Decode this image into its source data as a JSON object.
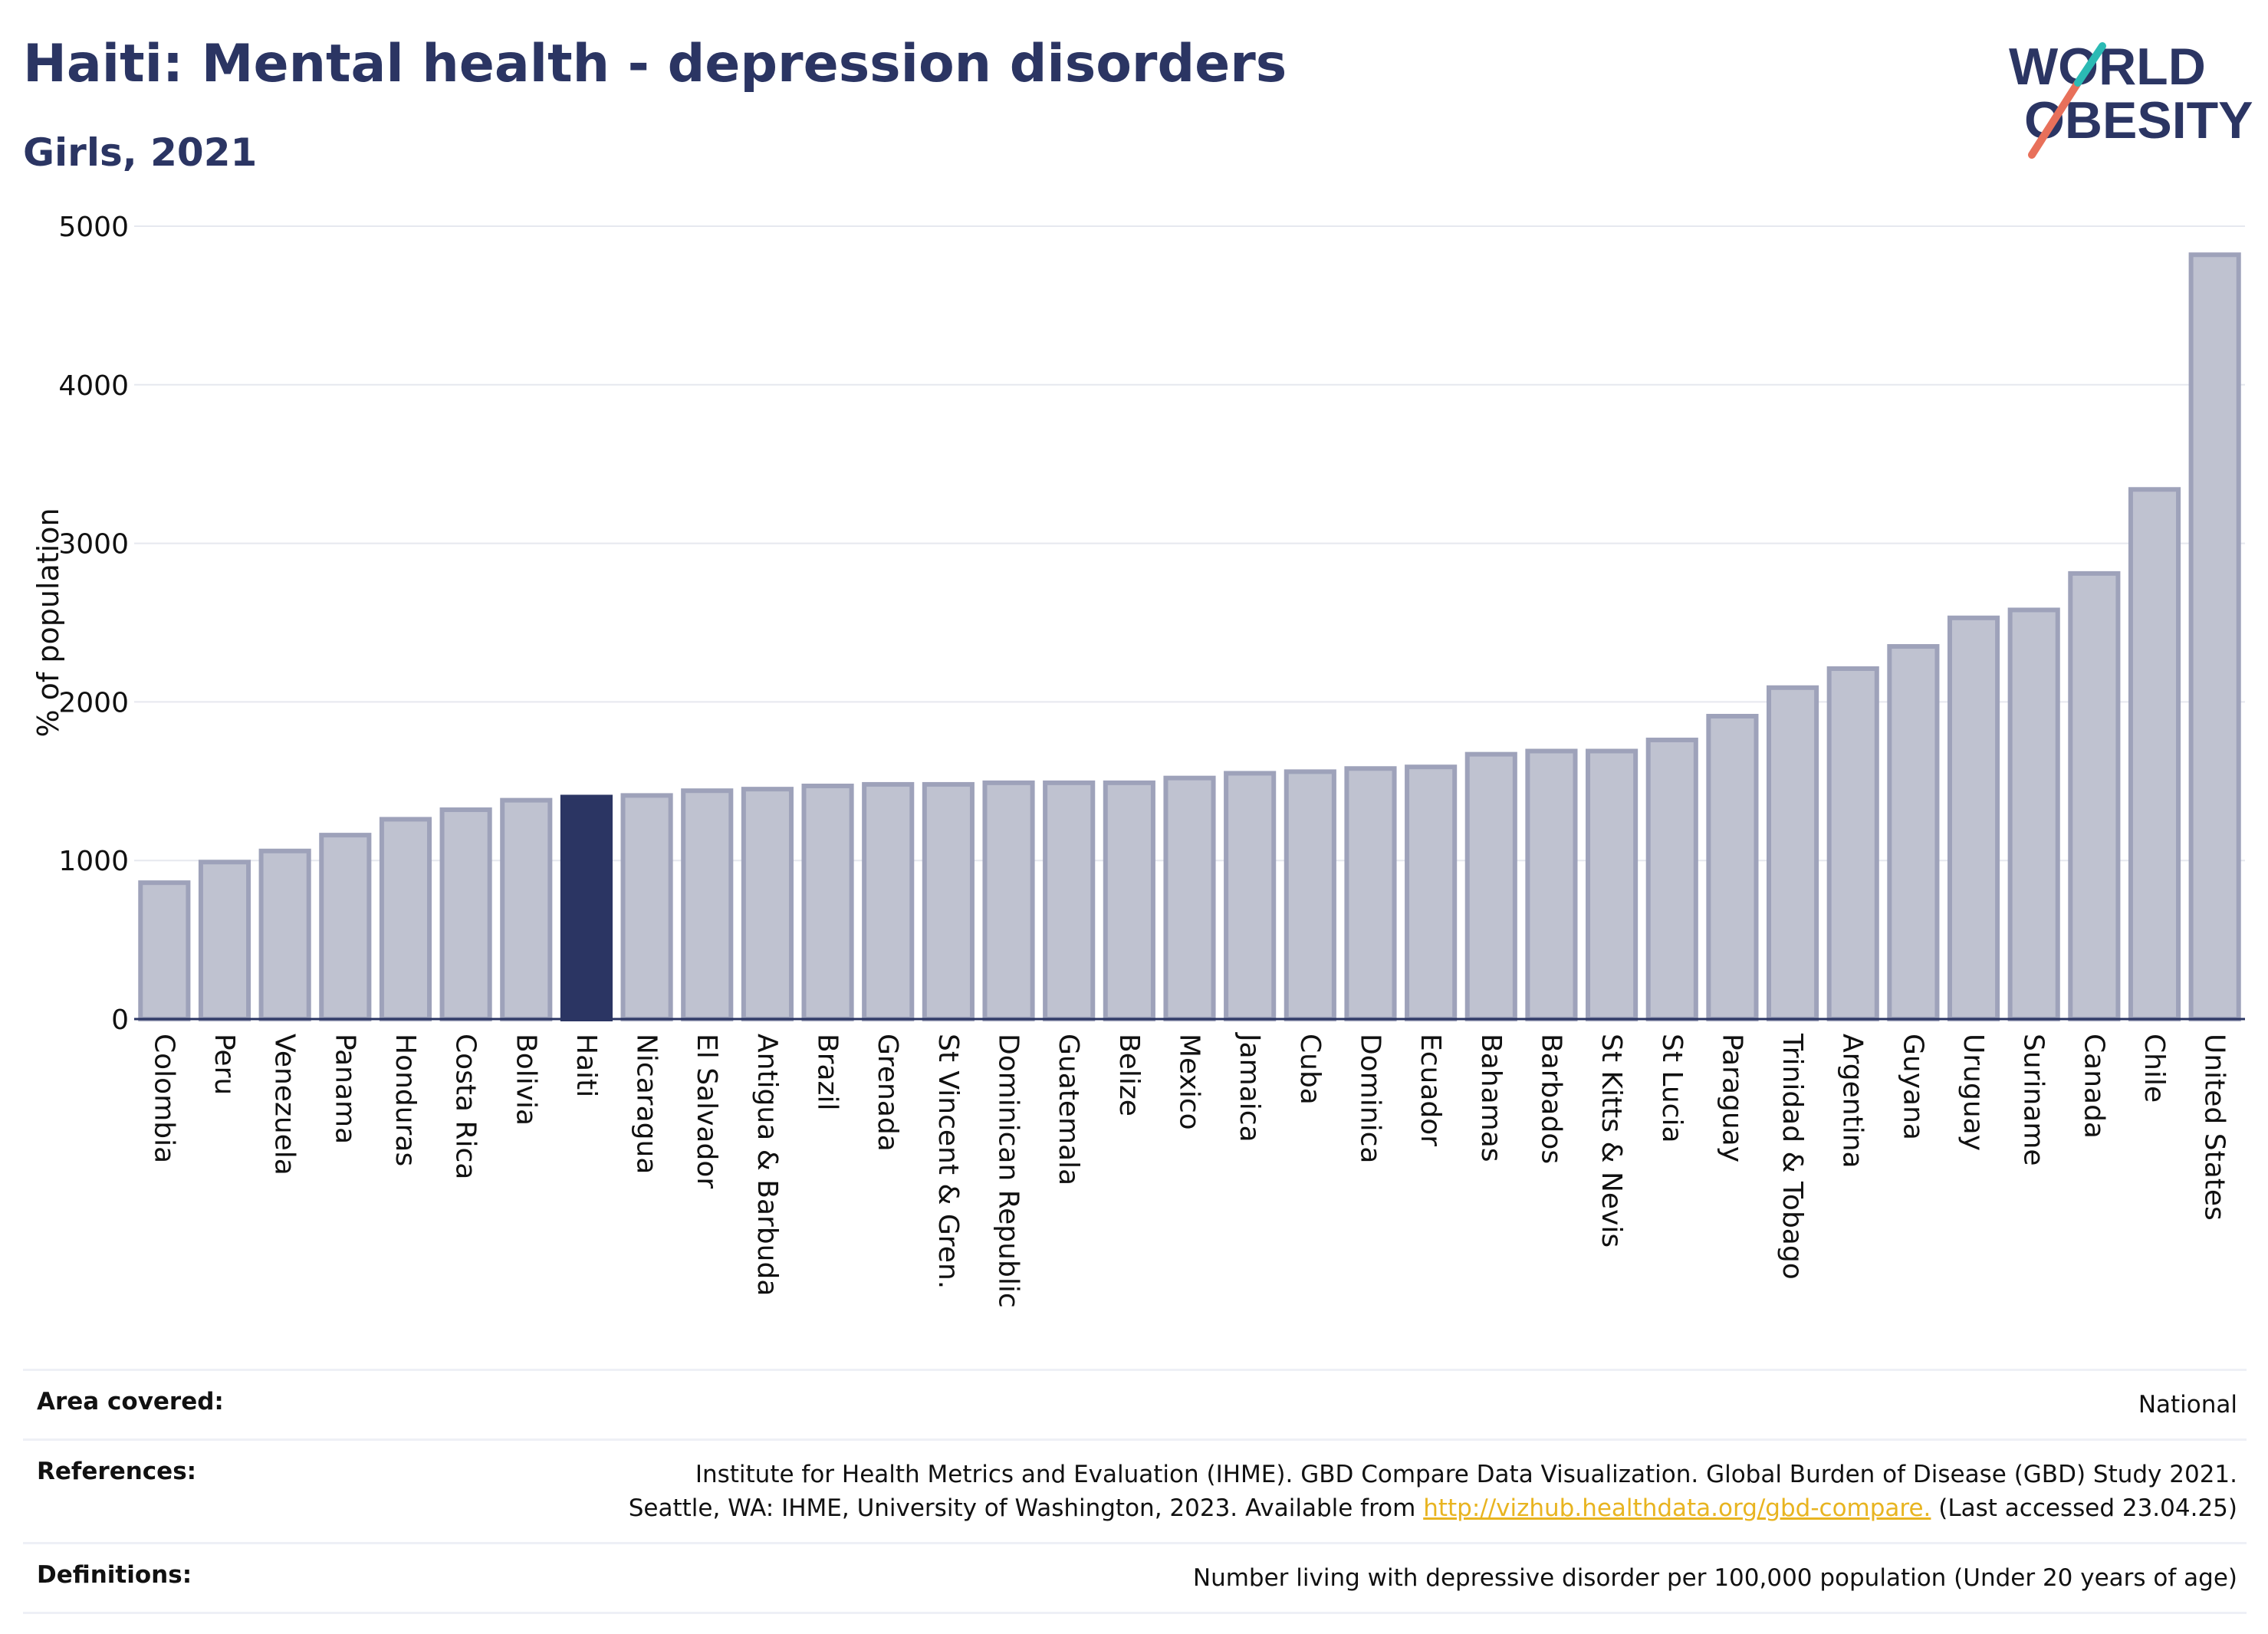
{
  "header": {
    "title": "Haiti: Mental health - depression disorders",
    "subtitle": "Girls, 2021"
  },
  "logo": {
    "line1": "WORLD",
    "line2": "OBESITY",
    "colors": [
      "#2b3563",
      "#e8705a",
      "#2bbab4"
    ]
  },
  "chart_data": {
    "type": "bar",
    "ylabel": "% of population",
    "ylim": [
      0,
      5000
    ],
    "yticks": [
      0,
      1000,
      2000,
      3000,
      4000,
      5000
    ],
    "grid": true,
    "highlight": "Haiti",
    "colors": {
      "bar": "#bfc2d0",
      "bar_border": "#9ea2ba",
      "highlight": "#2b3563",
      "grid": "#e6e8ef",
      "axis": "#2b3563"
    },
    "categories": [
      "Colombia",
      "Peru",
      "Venezuela",
      "Panama",
      "Honduras",
      "Costa Rica",
      "Bolivia",
      "Haiti",
      "Nicaragua",
      "El Salvador",
      "Antigua & Barbuda",
      "Brazil",
      "Grenada",
      "St Vincent & Gren.",
      "Dominican Republic",
      "Guatemala",
      "Belize",
      "Mexico",
      "Jamaica",
      "Cuba",
      "Dominica",
      "Ecuador",
      "Bahamas",
      "Barbados",
      "St Kitts & Nevis",
      "St Lucia",
      "Paraguay",
      "Trinidad & Tobago",
      "Argentina",
      "Guyana",
      "Uruguay",
      "Suriname",
      "Canada",
      "Chile",
      "United States"
    ],
    "values": [
      860,
      990,
      1060,
      1160,
      1260,
      1320,
      1380,
      1400,
      1410,
      1440,
      1450,
      1470,
      1480,
      1480,
      1490,
      1490,
      1490,
      1520,
      1550,
      1560,
      1580,
      1590,
      1670,
      1690,
      1690,
      1760,
      1910,
      2090,
      2210,
      2350,
      2530,
      2580,
      2810,
      3340,
      4820
    ]
  },
  "footer": {
    "area_label": "Area covered:",
    "area_value": "National",
    "references_label": "References:",
    "references_line1": "Institute for Health Metrics and Evaluation (IHME). GBD Compare Data Visualization. Global Burden of Disease (GBD) Study 2021.",
    "references_line2_pre": "Seattle, WA: IHME, University of Washington, 2023. Available from ",
    "references_link": "http://vizhub.healthdata.org/gbd-compare.",
    "references_line2_post": " (Last accessed 23.04.25)",
    "definitions_label": "Definitions:",
    "definitions_value": "Number living with depressive disorder per 100,000 population (Under 20 years of age)"
  }
}
